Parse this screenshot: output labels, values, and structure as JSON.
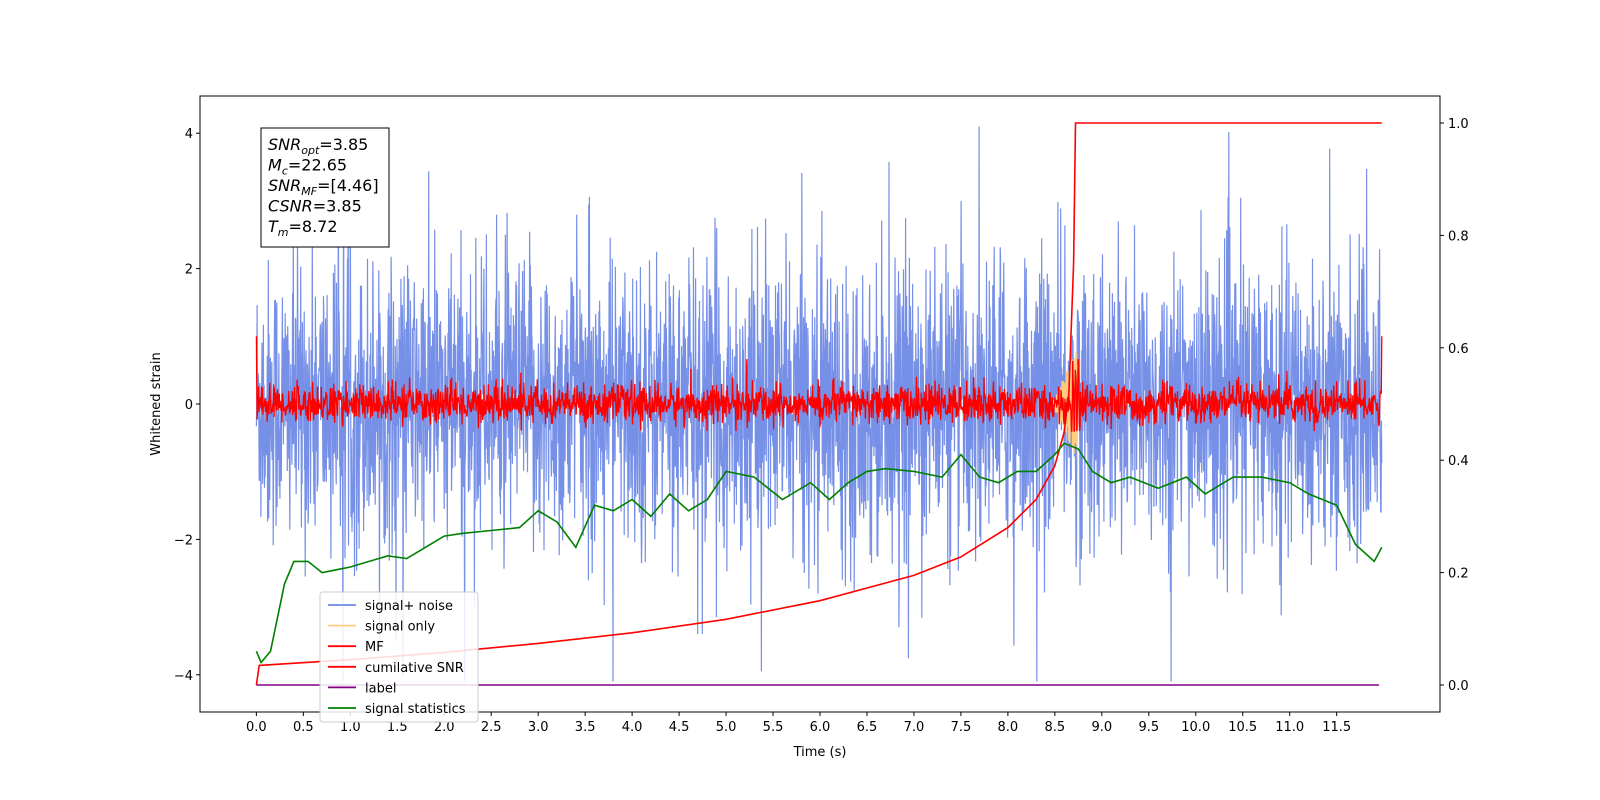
{
  "chart_data": {
    "type": "line",
    "xlabel": "Time (s)",
    "ylabel": "Whitened strain",
    "xlim": [
      -0.6,
      12.6
    ],
    "ylim": [
      -4.55,
      4.55
    ],
    "ylim_right": [
      -0.048,
      1.048
    ],
    "x_ticks": [
      "0.0",
      "0.5",
      "1.0",
      "1.5",
      "2.0",
      "2.5",
      "3.0",
      "3.5",
      "4.0",
      "4.5",
      "5.0",
      "5.5",
      "6.0",
      "6.5",
      "7.0",
      "7.5",
      "8.0",
      "8.5",
      "9.0",
      "9.5",
      "10.0",
      "10.5",
      "11.0",
      "11.5"
    ],
    "y_ticks": [
      "4",
      "2",
      "0",
      "−2",
      "−4"
    ],
    "y_ticks_right": [
      "1.0",
      "0.8",
      "0.6",
      "0.4",
      "0.2",
      "0.0"
    ],
    "t_start": 0.0,
    "t_end": 11.98,
    "merger_time": 8.72,
    "legend": {
      "placement": "lower-left",
      "entries": [
        {
          "label": "signal+ noise",
          "color": "#6f8ae6"
        },
        {
          "label": "signal only",
          "color": "#ffcc80"
        },
        {
          "label": "MF",
          "color": "#ff0000"
        },
        {
          "label": "cumilative SNR",
          "color": "#ff0000"
        },
        {
          "label": "label",
          "color": "#800080"
        },
        {
          "label": "signal statistics",
          "color": "#008000"
        }
      ]
    },
    "annotation": {
      "lines": [
        {
          "sym": "SNR",
          "sub": "opt",
          "val": "=3.85"
        },
        {
          "sym": "M",
          "sub": "c",
          "val": "=22.65"
        },
        {
          "sym": "SNR",
          "sub": "MF",
          "val": "=[4.46]"
        },
        {
          "sym": "CSNR",
          "sub": "",
          "val": "=3.85"
        },
        {
          "sym": "T",
          "sub": "m",
          "val": "=8.72"
        }
      ]
    },
    "series": [
      {
        "name": "signal+ noise",
        "axis": "left",
        "color": "#6f8ae6",
        "approx_range": [
          -4.1,
          4.1
        ],
        "shape": "dense noise band"
      },
      {
        "name": "signal only",
        "axis": "left",
        "color": "#ffcc80",
        "shape": "short chirp near merger",
        "peak": 0.8
      },
      {
        "name": "MF",
        "axis": "left",
        "color": "#ff0000",
        "approx_range": [
          -0.4,
          0.9
        ],
        "endpoints": [
          1.0,
          1.0
        ]
      },
      {
        "name": "cumilative SNR",
        "axis": "right",
        "color": "#ff0000",
        "points": [
          [
            0.0,
            0.0
          ],
          [
            0.03,
            0.035
          ],
          [
            1.0,
            0.045
          ],
          [
            2.0,
            0.058
          ],
          [
            3.0,
            0.074
          ],
          [
            4.0,
            0.093
          ],
          [
            5.0,
            0.117
          ],
          [
            6.0,
            0.15
          ],
          [
            7.0,
            0.195
          ],
          [
            7.5,
            0.228
          ],
          [
            8.0,
            0.28
          ],
          [
            8.3,
            0.33
          ],
          [
            8.5,
            0.39
          ],
          [
            8.6,
            0.45
          ],
          [
            8.65,
            0.52
          ],
          [
            8.7,
            0.75
          ],
          [
            8.72,
            1.0
          ],
          [
            11.98,
            1.0
          ]
        ]
      },
      {
        "name": "label",
        "axis": "right",
        "color": "#800080",
        "points": [
          [
            0.0,
            0.0
          ],
          [
            11.95,
            0.0
          ]
        ]
      },
      {
        "name": "signal statistics",
        "axis": "right",
        "color": "#008000",
        "points": [
          [
            0.0,
            0.06
          ],
          [
            0.05,
            0.04
          ],
          [
            0.15,
            0.06
          ],
          [
            0.3,
            0.18
          ],
          [
            0.4,
            0.22
          ],
          [
            0.55,
            0.22
          ],
          [
            0.7,
            0.2
          ],
          [
            0.85,
            0.205
          ],
          [
            1.0,
            0.21
          ],
          [
            1.2,
            0.22
          ],
          [
            1.4,
            0.23
          ],
          [
            1.6,
            0.225
          ],
          [
            1.8,
            0.245
          ],
          [
            2.0,
            0.265
          ],
          [
            2.2,
            0.27
          ],
          [
            2.5,
            0.275
          ],
          [
            2.8,
            0.28
          ],
          [
            3.0,
            0.31
          ],
          [
            3.2,
            0.29
          ],
          [
            3.4,
            0.245
          ],
          [
            3.6,
            0.32
          ],
          [
            3.8,
            0.31
          ],
          [
            4.0,
            0.33
          ],
          [
            4.2,
            0.3
          ],
          [
            4.4,
            0.34
          ],
          [
            4.6,
            0.31
          ],
          [
            4.8,
            0.33
          ],
          [
            5.0,
            0.38
          ],
          [
            5.3,
            0.37
          ],
          [
            5.6,
            0.33
          ],
          [
            5.9,
            0.36
          ],
          [
            6.1,
            0.33
          ],
          [
            6.3,
            0.36
          ],
          [
            6.5,
            0.38
          ],
          [
            6.7,
            0.385
          ],
          [
            7.0,
            0.38
          ],
          [
            7.3,
            0.37
          ],
          [
            7.5,
            0.41
          ],
          [
            7.7,
            0.37
          ],
          [
            7.9,
            0.36
          ],
          [
            8.1,
            0.38
          ],
          [
            8.3,
            0.38
          ],
          [
            8.5,
            0.41
          ],
          [
            8.6,
            0.43
          ],
          [
            8.75,
            0.42
          ],
          [
            8.9,
            0.38
          ],
          [
            9.1,
            0.36
          ],
          [
            9.3,
            0.37
          ],
          [
            9.6,
            0.35
          ],
          [
            9.9,
            0.37
          ],
          [
            10.1,
            0.34
          ],
          [
            10.4,
            0.37
          ],
          [
            10.7,
            0.37
          ],
          [
            11.0,
            0.36
          ],
          [
            11.2,
            0.34
          ],
          [
            11.5,
            0.32
          ],
          [
            11.7,
            0.25
          ],
          [
            11.9,
            0.22
          ],
          [
            11.98,
            0.245
          ]
        ]
      }
    ]
  }
}
